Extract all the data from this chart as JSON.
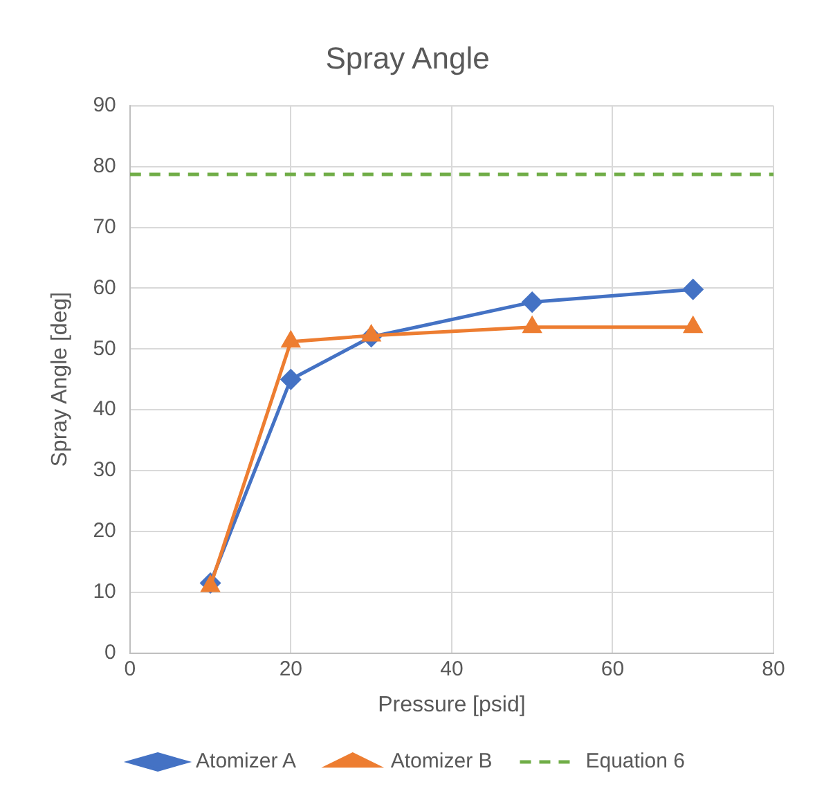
{
  "chart_data": {
    "type": "line",
    "title": "Spray Angle",
    "xlabel": "Pressure [psid]",
    "ylabel": "Spray Angle [deg]",
    "xlim": [
      0,
      80
    ],
    "xticks": [
      0,
      20,
      40,
      60,
      80
    ],
    "ylim": [
      0,
      90
    ],
    "yticks": [
      0,
      10,
      20,
      30,
      40,
      50,
      60,
      70,
      80,
      90
    ],
    "grid": true,
    "legend": "bottom",
    "series": [
      {
        "name": "Atomizer A",
        "color": "#4472c4",
        "x": [
          10,
          20,
          30,
          50,
          70
        ],
        "values": [
          11.5,
          45,
          52,
          57.7,
          59.8
        ],
        "marker": "diamond",
        "line_style": "solid"
      },
      {
        "name": "Atomizer B",
        "color": "#ed7d31",
        "x": [
          10,
          20,
          30,
          50,
          70
        ],
        "values": [
          11,
          51.2,
          52.2,
          53.6,
          53.6
        ],
        "marker": "triangle",
        "line_style": "solid"
      },
      {
        "name": "Equation 6",
        "color": "#70ad47",
        "x": [
          0,
          80
        ],
        "values": [
          78.7,
          78.7
        ],
        "marker": "none",
        "line_style": "dashed"
      }
    ]
  }
}
